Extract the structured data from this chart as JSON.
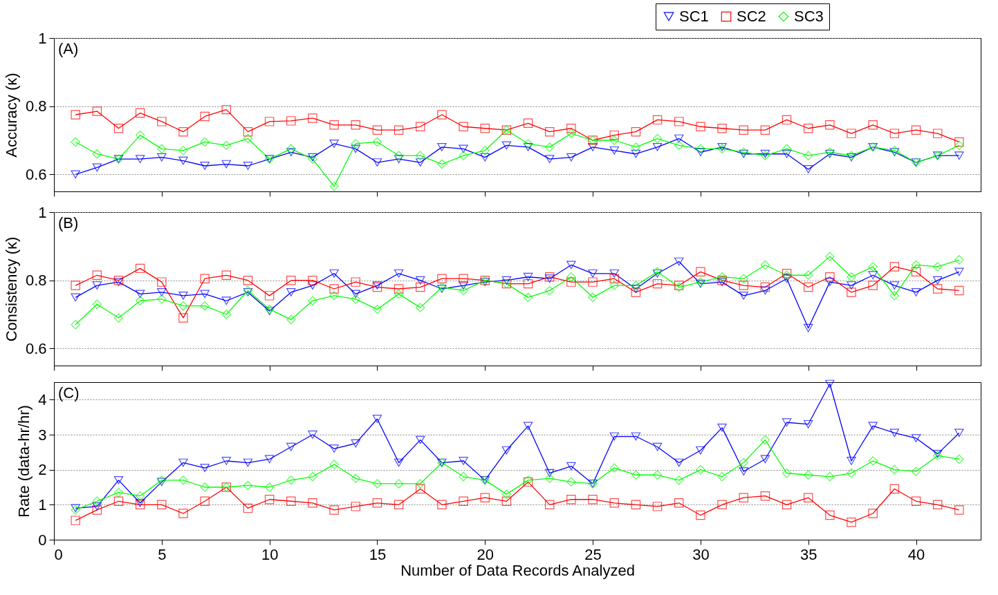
{
  "chart_data": [
    {
      "type": "line",
      "ylabel": "Accuracy (κ)",
      "annotations": [
        "(A)"
      ],
      "xlim": [
        0,
        43
      ],
      "xticks": [
        0,
        5,
        10,
        15,
        20,
        25,
        30,
        35,
        40
      ],
      "ylim": [
        0.55,
        1
      ],
      "yticks": [
        0.6,
        0.8,
        1
      ],
      "grid": "y",
      "legend": "top right",
      "tick_labels": "y",
      "x": [
        1,
        2,
        3,
        4,
        5,
        6,
        7,
        8,
        9,
        10,
        11,
        12,
        13,
        14,
        15,
        16,
        17,
        18,
        19,
        20,
        21,
        22,
        23,
        24,
        25,
        26,
        27,
        28,
        29,
        30,
        31,
        32,
        33,
        34,
        35,
        36,
        37,
        38,
        39,
        40,
        41,
        42
      ],
      "series": [
        {
          "name": "SC1",
          "color": "#0000ff",
          "marker": "triangle-down",
          "values": [
            0.6,
            0.62,
            0.645,
            0.645,
            0.65,
            0.64,
            0.625,
            0.63,
            0.625,
            0.645,
            0.665,
            0.65,
            0.69,
            0.675,
            0.635,
            0.645,
            0.635,
            0.68,
            0.675,
            0.65,
            0.685,
            0.68,
            0.645,
            0.65,
            0.68,
            0.67,
            0.66,
            0.68,
            0.705,
            0.665,
            0.68,
            0.66,
            0.66,
            0.66,
            0.615,
            0.66,
            0.65,
            0.68,
            0.665,
            0.635,
            0.655,
            0.655
          ]
        },
        {
          "name": "SC2",
          "color": "#ff0000",
          "marker": "square",
          "values": [
            0.775,
            0.785,
            0.735,
            0.78,
            0.755,
            0.725,
            0.77,
            0.79,
            0.725,
            0.755,
            0.757,
            0.765,
            0.745,
            0.745,
            0.73,
            0.73,
            0.74,
            0.775,
            0.74,
            0.735,
            0.73,
            0.75,
            0.725,
            0.735,
            0.7,
            0.715,
            0.725,
            0.76,
            0.755,
            0.74,
            0.735,
            0.73,
            0.73,
            0.76,
            0.735,
            0.745,
            0.72,
            0.745,
            0.72,
            0.73,
            0.72,
            0.695
          ]
        },
        {
          "name": "SC3",
          "color": "#00ff00",
          "marker": "diamond",
          "values": [
            0.695,
            0.66,
            0.645,
            0.715,
            0.675,
            0.67,
            0.695,
            0.685,
            0.705,
            0.645,
            0.675,
            0.645,
            0.565,
            0.69,
            0.695,
            0.655,
            0.655,
            0.63,
            0.655,
            0.67,
            0.73,
            0.69,
            0.68,
            0.72,
            0.7,
            0.7,
            0.68,
            0.705,
            0.685,
            0.675,
            0.675,
            0.665,
            0.655,
            0.675,
            0.655,
            0.665,
            0.655,
            0.68,
            0.67,
            0.635,
            0.655,
            0.685
          ]
        }
      ]
    },
    {
      "type": "line",
      "ylabel": "Consistency (κ)",
      "annotations": [
        "(B)"
      ],
      "xlim": [
        0,
        43
      ],
      "xticks": [
        0,
        5,
        10,
        15,
        20,
        25,
        30,
        35,
        40
      ],
      "ylim": [
        0.55,
        1
      ],
      "yticks": [
        0.6,
        0.8,
        1
      ],
      "grid": "y",
      "tick_labels": "y",
      "x": [
        1,
        2,
        3,
        4,
        5,
        6,
        7,
        8,
        9,
        10,
        11,
        12,
        13,
        14,
        15,
        16,
        17,
        18,
        19,
        20,
        21,
        22,
        23,
        24,
        25,
        26,
        27,
        28,
        29,
        30,
        31,
        32,
        33,
        34,
        35,
        36,
        37,
        38,
        39,
        40,
        41,
        42
      ],
      "series": [
        {
          "color": "#0000ff",
          "marker": "triangle-down",
          "values": [
            0.75,
            0.785,
            0.795,
            0.76,
            0.765,
            0.755,
            0.76,
            0.74,
            0.765,
            0.71,
            0.765,
            0.785,
            0.82,
            0.76,
            0.785,
            0.82,
            0.8,
            0.775,
            0.785,
            0.795,
            0.8,
            0.81,
            0.805,
            0.845,
            0.82,
            0.82,
            0.775,
            0.82,
            0.855,
            0.79,
            0.795,
            0.755,
            0.77,
            0.805,
            0.66,
            0.795,
            0.785,
            0.815,
            0.785,
            0.765,
            0.8,
            0.825
          ]
        },
        {
          "color": "#ff0000",
          "marker": "square",
          "values": [
            0.785,
            0.815,
            0.8,
            0.835,
            0.795,
            0.69,
            0.805,
            0.815,
            0.8,
            0.755,
            0.8,
            0.8,
            0.775,
            0.795,
            0.78,
            0.775,
            0.78,
            0.805,
            0.805,
            0.8,
            0.79,
            0.79,
            0.81,
            0.795,
            0.795,
            0.805,
            0.765,
            0.79,
            0.785,
            0.825,
            0.8,
            0.785,
            0.78,
            0.82,
            0.78,
            0.81,
            0.765,
            0.785,
            0.84,
            0.825,
            0.775,
            0.77
          ]
        },
        {
          "color": "#00ff00",
          "marker": "diamond",
          "values": [
            0.67,
            0.73,
            0.69,
            0.74,
            0.745,
            0.725,
            0.725,
            0.7,
            0.77,
            0.715,
            0.685,
            0.74,
            0.755,
            0.745,
            0.715,
            0.76,
            0.72,
            0.78,
            0.77,
            0.8,
            0.79,
            0.75,
            0.77,
            0.81,
            0.75,
            0.785,
            0.785,
            0.825,
            0.78,
            0.795,
            0.81,
            0.805,
            0.845,
            0.815,
            0.815,
            0.87,
            0.81,
            0.84,
            0.755,
            0.845,
            0.84,
            0.86
          ]
        }
      ]
    },
    {
      "type": "line",
      "xlabel": "Number of Data Records Analyzed",
      "ylabel": "Rate (data-hr/hr)",
      "annotations": [
        "(C)"
      ],
      "xlim": [
        0,
        43
      ],
      "xticks": [
        0,
        5,
        10,
        15,
        20,
        25,
        30,
        35,
        40
      ],
      "ylim": [
        0,
        4.5
      ],
      "yticks": [
        0,
        1,
        2,
        3,
        4
      ],
      "grid": "y",
      "x": [
        1,
        2,
        3,
        4,
        5,
        6,
        7,
        8,
        9,
        10,
        11,
        12,
        13,
        14,
        15,
        16,
        17,
        18,
        19,
        20,
        21,
        22,
        23,
        24,
        25,
        26,
        27,
        28,
        29,
        30,
        31,
        32,
        33,
        34,
        35,
        36,
        37,
        38,
        39,
        40,
        41,
        42
      ],
      "series": [
        {
          "color": "#0000ff",
          "marker": "triangle-down",
          "values": [
            0.9,
            0.95,
            1.7,
            1.05,
            1.65,
            2.2,
            2.05,
            2.25,
            2.2,
            2.3,
            2.65,
            3.0,
            2.6,
            2.75,
            3.45,
            2.2,
            2.85,
            2.2,
            2.25,
            1.7,
            2.55,
            3.25,
            1.9,
            2.1,
            1.6,
            2.95,
            2.95,
            2.65,
            2.2,
            2.55,
            3.2,
            1.95,
            2.3,
            3.35,
            3.3,
            4.45,
            2.25,
            3.25,
            3.05,
            2.9,
            2.45,
            3.05
          ]
        },
        {
          "color": "#ff0000",
          "marker": "square",
          "values": [
            0.55,
            0.85,
            1.1,
            1.0,
            1.0,
            0.75,
            1.1,
            1.5,
            0.9,
            1.15,
            1.1,
            1.05,
            0.85,
            0.95,
            1.05,
            1.0,
            1.45,
            1.0,
            1.1,
            1.2,
            1.1,
            1.65,
            1.0,
            1.15,
            1.15,
            1.05,
            1.0,
            0.95,
            1.05,
            0.7,
            1.0,
            1.2,
            1.25,
            1.0,
            1.2,
            0.7,
            0.5,
            0.75,
            1.45,
            1.1,
            1.0,
            0.85
          ]
        },
        {
          "color": "#00ff00",
          "marker": "diamond",
          "values": [
            0.85,
            1.1,
            1.35,
            1.25,
            1.7,
            1.7,
            1.5,
            1.5,
            1.55,
            1.5,
            1.7,
            1.8,
            2.15,
            1.75,
            1.6,
            1.6,
            1.6,
            2.2,
            1.8,
            1.7,
            1.3,
            1.7,
            1.75,
            1.65,
            1.6,
            2.05,
            1.85,
            1.85,
            1.7,
            2.0,
            1.8,
            2.2,
            2.85,
            1.9,
            1.85,
            1.8,
            1.9,
            2.25,
            2.0,
            1.95,
            2.4,
            2.3
          ]
        }
      ]
    }
  ]
}
